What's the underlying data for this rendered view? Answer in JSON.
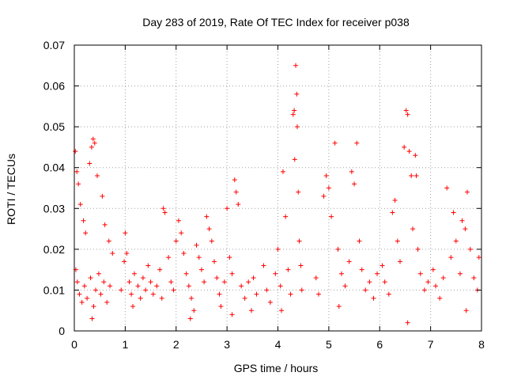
{
  "chart_data": {
    "type": "scatter",
    "title": "Day 283 of 2019, Rate Of TEC Index for receiver p038",
    "xlabel": "GPS time / hours",
    "ylabel": "ROTI / TECUs",
    "xlim": [
      0,
      8
    ],
    "ylim": [
      0,
      0.07
    ],
    "xticks": [
      "0",
      "1",
      "2",
      "3",
      "4",
      "5",
      "6",
      "7",
      "8"
    ],
    "yticks": [
      "0",
      "0.01",
      "0.02",
      "0.03",
      "0.04",
      "0.05",
      "0.06",
      "0.07"
    ],
    "grid": true,
    "marker": "plus",
    "series": [
      {
        "name": "ROTI",
        "color": "#ff0000",
        "points": [
          [
            0.02,
            0.044
          ],
          [
            0.05,
            0.039
          ],
          [
            0.08,
            0.036
          ],
          [
            0.12,
            0.031
          ],
          [
            0.18,
            0.027
          ],
          [
            0.22,
            0.024
          ],
          [
            0.3,
            0.041
          ],
          [
            0.34,
            0.045
          ],
          [
            0.37,
            0.047
          ],
          [
            0.4,
            0.046
          ],
          [
            0.45,
            0.038
          ],
          [
            0.55,
            0.033
          ],
          [
            0.6,
            0.026
          ],
          [
            0.68,
            0.022
          ],
          [
            0.75,
            0.019
          ],
          [
            0.03,
            0.015
          ],
          [
            0.06,
            0.012
          ],
          [
            0.1,
            0.009
          ],
          [
            0.15,
            0.007
          ],
          [
            0.2,
            0.011
          ],
          [
            0.25,
            0.008
          ],
          [
            0.32,
            0.013
          ],
          [
            0.38,
            0.006
          ],
          [
            0.42,
            0.01
          ],
          [
            0.48,
            0.014
          ],
          [
            0.52,
            0.009
          ],
          [
            0.58,
            0.012
          ],
          [
            0.64,
            0.007
          ],
          [
            0.7,
            0.011
          ],
          [
            0.35,
            0.003
          ],
          [
            0.92,
            0.01
          ],
          [
            0.98,
            0.017
          ],
          [
            1.0,
            0.024
          ],
          [
            1.03,
            0.019
          ],
          [
            1.08,
            0.012
          ],
          [
            1.12,
            0.009
          ],
          [
            1.18,
            0.014
          ],
          [
            1.25,
            0.011
          ],
          [
            1.3,
            0.008
          ],
          [
            1.35,
            0.013
          ],
          [
            1.4,
            0.01
          ],
          [
            1.45,
            0.016
          ],
          [
            1.5,
            0.012
          ],
          [
            1.55,
            0.009
          ],
          [
            1.15,
            0.006
          ],
          [
            1.62,
            0.011
          ],
          [
            1.68,
            0.015
          ],
          [
            1.72,
            0.008
          ],
          [
            1.75,
            0.03
          ],
          [
            1.78,
            0.029
          ],
          [
            1.85,
            0.018
          ],
          [
            1.9,
            0.012
          ],
          [
            1.95,
            0.01
          ],
          [
            2.0,
            0.022
          ],
          [
            2.05,
            0.027
          ],
          [
            2.1,
            0.024
          ],
          [
            2.15,
            0.019
          ],
          [
            2.2,
            0.014
          ],
          [
            2.25,
            0.011
          ],
          [
            2.3,
            0.008
          ],
          [
            2.35,
            0.005
          ],
          [
            2.4,
            0.021
          ],
          [
            2.45,
            0.018
          ],
          [
            2.5,
            0.015
          ],
          [
            2.55,
            0.012
          ],
          [
            2.6,
            0.028
          ],
          [
            2.65,
            0.025
          ],
          [
            2.7,
            0.022
          ],
          [
            2.75,
            0.017
          ],
          [
            2.8,
            0.013
          ],
          [
            2.85,
            0.009
          ],
          [
            2.28,
            0.003
          ],
          [
            2.88,
            0.006
          ],
          [
            2.95,
            0.012
          ],
          [
            3.0,
            0.03
          ],
          [
            3.05,
            0.018
          ],
          [
            3.1,
            0.014
          ],
          [
            3.15,
            0.037
          ],
          [
            3.18,
            0.034
          ],
          [
            3.22,
            0.031
          ],
          [
            3.28,
            0.011
          ],
          [
            3.35,
            0.008
          ],
          [
            3.42,
            0.012
          ],
          [
            3.48,
            0.005
          ],
          [
            3.52,
            0.013
          ],
          [
            3.58,
            0.009
          ],
          [
            3.1,
            0.004
          ],
          [
            3.72,
            0.016
          ],
          [
            3.78,
            0.01
          ],
          [
            3.85,
            0.007
          ],
          [
            3.95,
            0.014
          ],
          [
            4.0,
            0.02
          ],
          [
            4.05,
            0.011
          ],
          [
            4.1,
            0.039
          ],
          [
            4.15,
            0.028
          ],
          [
            4.2,
            0.015
          ],
          [
            4.25,
            0.009
          ],
          [
            4.3,
            0.053
          ],
          [
            4.32,
            0.054
          ],
          [
            4.35,
            0.065
          ],
          [
            4.37,
            0.058
          ],
          [
            4.38,
            0.05
          ],
          [
            4.4,
            0.034
          ],
          [
            4.33,
            0.042
          ],
          [
            4.42,
            0.022
          ],
          [
            4.45,
            0.016
          ],
          [
            4.47,
            0.01
          ],
          [
            4.07,
            0.005
          ],
          [
            4.75,
            0.013
          ],
          [
            4.8,
            0.009
          ],
          [
            4.9,
            0.033
          ],
          [
            4.95,
            0.038
          ],
          [
            5.0,
            0.035
          ],
          [
            5.05,
            0.028
          ],
          [
            5.12,
            0.046
          ],
          [
            5.18,
            0.02
          ],
          [
            5.25,
            0.014
          ],
          [
            5.32,
            0.011
          ],
          [
            5.4,
            0.017
          ],
          [
            5.45,
            0.039
          ],
          [
            5.5,
            0.036
          ],
          [
            5.55,
            0.046
          ],
          [
            5.6,
            0.022
          ],
          [
            5.65,
            0.015
          ],
          [
            5.72,
            0.01
          ],
          [
            5.8,
            0.012
          ],
          [
            5.88,
            0.008
          ],
          [
            5.95,
            0.014
          ],
          [
            5.2,
            0.006
          ],
          [
            6.05,
            0.016
          ],
          [
            6.1,
            0.012
          ],
          [
            6.18,
            0.009
          ],
          [
            6.25,
            0.029
          ],
          [
            6.3,
            0.032
          ],
          [
            6.35,
            0.022
          ],
          [
            6.4,
            0.017
          ],
          [
            6.48,
            0.045
          ],
          [
            6.52,
            0.054
          ],
          [
            6.55,
            0.053
          ],
          [
            6.58,
            0.044
          ],
          [
            6.62,
            0.038
          ],
          [
            6.65,
            0.025
          ],
          [
            6.7,
            0.043
          ],
          [
            6.72,
            0.038
          ],
          [
            6.75,
            0.02
          ],
          [
            6.8,
            0.014
          ],
          [
            6.88,
            0.01
          ],
          [
            6.95,
            0.012
          ],
          [
            6.55,
            0.002
          ],
          [
            7.05,
            0.015
          ],
          [
            7.1,
            0.011
          ],
          [
            7.18,
            0.008
          ],
          [
            7.25,
            0.013
          ],
          [
            7.32,
            0.035
          ],
          [
            7.4,
            0.018
          ],
          [
            7.45,
            0.029
          ],
          [
            7.5,
            0.022
          ],
          [
            7.58,
            0.014
          ],
          [
            7.62,
            0.027
          ],
          [
            7.68,
            0.025
          ],
          [
            7.72,
            0.034
          ],
          [
            7.78,
            0.02
          ],
          [
            7.85,
            0.013
          ],
          [
            7.92,
            0.01
          ],
          [
            7.95,
            0.018
          ],
          [
            7.7,
            0.005
          ]
        ]
      }
    ]
  }
}
